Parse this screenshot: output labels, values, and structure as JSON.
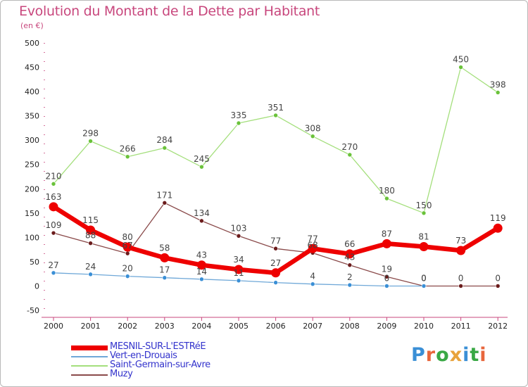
{
  "header": {
    "title": "Evolution du Montant de la Dette par Habitant",
    "unit": "(en €)"
  },
  "brand": {
    "text": "Proxiti",
    "letter_colors": [
      "#3a8fd6",
      "#e8663c",
      "#39a845",
      "#e8a33c",
      "#3a8fd6",
      "#39a845",
      "#e8663c"
    ]
  },
  "chart_data": {
    "type": "line",
    "x": [
      "2000",
      "2001",
      "2002",
      "2003",
      "2004",
      "2005",
      "2006",
      "2007",
      "2008",
      "2009",
      "2010",
      "2011",
      "2012"
    ],
    "ylim": [
      -50,
      500
    ],
    "yticks": [
      "-50",
      "0",
      "50",
      "100",
      "150",
      "200",
      "250",
      "300",
      "350",
      "400",
      "450",
      "500"
    ],
    "grid": false,
    "legend_position": "bottom-left",
    "series": [
      {
        "name": "MESNIL-SUR-L'ESTRéE",
        "color": "#ee0000",
        "marker_color": "#ee0000",
        "values": [
          163,
          115,
          80,
          58,
          43,
          34,
          27,
          77,
          66,
          87,
          81,
          73,
          119
        ],
        "labels": [
          "163",
          "115",
          "80",
          "58",
          "43",
          "34",
          "27",
          "77",
          "66",
          "87",
          "81",
          "73",
          "119"
        ]
      },
      {
        "name": "Vert-en-Drouais",
        "color": "#6fa8d8",
        "marker_color": "#3a8fd6",
        "values": [
          27,
          24,
          20,
          17,
          14,
          11,
          7,
          4,
          2,
          0,
          0,
          null,
          null
        ],
        "labels": [
          "27",
          "24",
          "20",
          "17",
          "14",
          "11",
          "",
          "4",
          "2",
          "0",
          "0",
          "",
          ""
        ]
      },
      {
        "name": "Saint-Germain-sur-Avre",
        "color": "#a4df7c",
        "marker_color": "#6ac23a",
        "values": [
          210,
          298,
          266,
          284,
          245,
          335,
          351,
          308,
          270,
          180,
          150,
          450,
          398
        ],
        "labels": [
          "210",
          "298",
          "266",
          "284",
          "245",
          "335",
          "351",
          "308",
          "270",
          "180",
          "150",
          "450",
          "398"
        ]
      },
      {
        "name": "Muzy",
        "color": "#8a4a4a",
        "marker_color": "#6b1c1c",
        "values": [
          109,
          88,
          67,
          171,
          134,
          103,
          77,
          68,
          43,
          19,
          0,
          0,
          0
        ],
        "labels": [
          "109",
          "88",
          "67",
          "171",
          "134",
          "103",
          "77",
          "68",
          "43",
          "19",
          "0",
          "0",
          "0"
        ]
      }
    ]
  }
}
